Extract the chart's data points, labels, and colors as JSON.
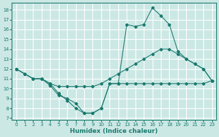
{
  "xlabel": "Humidex (Indice chaleur)",
  "bg_color": "#cce8e5",
  "grid_color": "#b0d8d4",
  "line_color": "#1a7a6e",
  "xlim": [
    -0.5,
    23.5
  ],
  "ylim": [
    6.8,
    18.7
  ],
  "xticks": [
    0,
    1,
    2,
    3,
    4,
    5,
    6,
    7,
    8,
    9,
    10,
    11,
    12,
    13,
    14,
    15,
    16,
    17,
    18,
    19,
    20,
    21,
    22,
    23
  ],
  "yticks": [
    7,
    8,
    9,
    10,
    11,
    12,
    13,
    14,
    15,
    16,
    17,
    18
  ],
  "curve_bell_x": [
    0,
    1,
    2,
    3,
    4,
    5,
    6,
    7,
    8,
    9,
    10,
    11,
    12,
    13,
    14,
    15,
    16,
    17,
    18,
    19,
    20,
    21,
    22,
    23
  ],
  "curve_bell_y": [
    12.0,
    11.5,
    11.0,
    11.0,
    10.3,
    9.3,
    9.0,
    8.5,
    7.5,
    7.5,
    8.0,
    10.5,
    10.5,
    16.5,
    16.3,
    16.5,
    18.2,
    17.4,
    16.5,
    13.8,
    13.0,
    12.5,
    12.0,
    10.8
  ],
  "curve_rise_x": [
    0,
    1,
    2,
    3,
    4,
    5,
    6,
    7,
    8,
    9,
    10,
    11,
    12,
    13,
    14,
    15,
    16,
    17,
    18,
    19,
    20,
    21,
    22,
    23
  ],
  "curve_rise_y": [
    12.0,
    11.5,
    11.0,
    11.0,
    10.5,
    10.2,
    10.2,
    10.2,
    10.2,
    10.2,
    10.5,
    11.0,
    11.5,
    12.0,
    12.5,
    13.0,
    13.5,
    14.0,
    14.0,
    13.5,
    13.0,
    12.5,
    12.0,
    10.8
  ],
  "curve_flat_x": [
    0,
    1,
    2,
    3,
    4,
    5,
    6,
    7,
    8,
    9,
    10,
    11,
    12,
    13,
    14,
    15,
    16,
    17,
    18,
    19,
    20,
    21,
    22,
    23
  ],
  "curve_flat_y": [
    12.0,
    11.5,
    11.0,
    11.0,
    10.5,
    9.5,
    8.8,
    8.0,
    7.5,
    7.5,
    8.0,
    10.5,
    10.5,
    10.5,
    10.5,
    10.5,
    10.5,
    10.5,
    10.5,
    10.5,
    10.5,
    10.5,
    10.5,
    10.8
  ]
}
